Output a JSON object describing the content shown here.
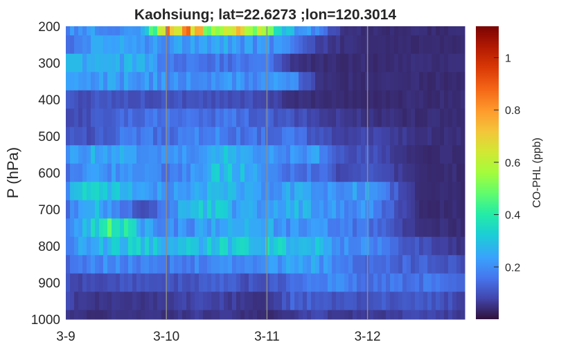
{
  "chart_data": {
    "type": "heatmap",
    "title": "Kaohsiung; lat=22.6273 ;lon=120.3014",
    "xlabel": "",
    "ylabel": "P (hPa)",
    "colorbar_label": "CO-PHL (ppb)",
    "colormap": "turbo",
    "clim": [
      0.0,
      1.12
    ],
    "x_range_days": [
      "3-9",
      "3-13"
    ],
    "x_ticks": [
      "3-9",
      "3-10",
      "3-11",
      "3-12"
    ],
    "y_range": [
      1000,
      200
    ],
    "y_reversed": true,
    "y_ticks": [
      200,
      300,
      400,
      500,
      600,
      700,
      800,
      900,
      1000
    ],
    "colorbar_ticks": [
      0.2,
      0.4,
      0.6,
      0.8,
      1
    ],
    "vertical_lines_at": [
      "3-10",
      "3-11",
      "3-12"
    ],
    "pressure_levels": [
      200,
      250,
      300,
      350,
      400,
      450,
      500,
      550,
      600,
      650,
      700,
      750,
      800,
      850,
      900,
      950,
      1000
    ],
    "time_nodes_day": [
      0,
      0.25,
      0.5,
      0.75,
      1.0,
      1.25,
      1.5,
      1.75,
      2.0,
      2.25,
      2.5,
      2.75,
      3.0,
      3.5,
      4.0
    ],
    "values": [
      [
        0.2,
        0.22,
        0.2,
        0.2,
        0.75,
        0.8,
        0.45,
        0.7,
        0.5,
        0.25,
        0.18,
        0.05,
        0.04,
        0.04,
        0.04
      ],
      [
        0.15,
        0.22,
        0.25,
        0.22,
        0.22,
        0.25,
        0.25,
        0.22,
        0.2,
        0.2,
        0.08,
        0.05,
        0.04,
        0.04,
        0.04
      ],
      [
        0.25,
        0.26,
        0.26,
        0.25,
        0.16,
        0.16,
        0.16,
        0.16,
        0.16,
        0.05,
        0.04,
        0.04,
        0.04,
        0.04,
        0.04
      ],
      [
        0.22,
        0.22,
        0.22,
        0.22,
        0.2,
        0.2,
        0.2,
        0.2,
        0.2,
        0.2,
        0.05,
        0.04,
        0.04,
        0.04,
        0.04
      ],
      [
        0.1,
        0.1,
        0.1,
        0.1,
        0.1,
        0.1,
        0.1,
        0.1,
        0.08,
        0.05,
        0.04,
        0.04,
        0.04,
        0.04,
        0.04
      ],
      [
        0.08,
        0.1,
        0.12,
        0.15,
        0.15,
        0.15,
        0.15,
        0.15,
        0.12,
        0.1,
        0.08,
        0.06,
        0.05,
        0.04,
        0.04
      ],
      [
        0.1,
        0.1,
        0.15,
        0.16,
        0.15,
        0.18,
        0.2,
        0.15,
        0.15,
        0.16,
        0.1,
        0.08,
        0.08,
        0.05,
        0.04
      ],
      [
        0.2,
        0.25,
        0.25,
        0.22,
        0.2,
        0.22,
        0.3,
        0.25,
        0.2,
        0.2,
        0.22,
        0.1,
        0.1,
        0.04,
        0.04
      ],
      [
        0.15,
        0.2,
        0.22,
        0.2,
        0.15,
        0.2,
        0.3,
        0.28,
        0.2,
        0.15,
        0.15,
        0.08,
        0.1,
        0.04,
        0.04
      ],
      [
        0.2,
        0.35,
        0.3,
        0.25,
        0.2,
        0.25,
        0.3,
        0.25,
        0.2,
        0.25,
        0.2,
        0.22,
        0.22,
        0.04,
        0.04
      ],
      [
        0.15,
        0.3,
        0.2,
        0.1,
        0.15,
        0.3,
        0.3,
        0.22,
        0.25,
        0.28,
        0.25,
        0.2,
        0.2,
        0.04,
        0.04
      ],
      [
        0.15,
        0.3,
        0.45,
        0.25,
        0.2,
        0.2,
        0.25,
        0.3,
        0.25,
        0.2,
        0.2,
        0.18,
        0.15,
        0.05,
        0.04
      ],
      [
        0.18,
        0.25,
        0.3,
        0.3,
        0.28,
        0.28,
        0.3,
        0.3,
        0.32,
        0.3,
        0.3,
        0.2,
        0.2,
        0.1,
        0.04
      ],
      [
        0.12,
        0.18,
        0.2,
        0.18,
        0.16,
        0.18,
        0.2,
        0.2,
        0.2,
        0.25,
        0.22,
        0.18,
        0.15,
        0.12,
        0.1
      ],
      [
        0.1,
        0.08,
        0.1,
        0.1,
        0.1,
        0.1,
        0.12,
        0.1,
        0.1,
        0.15,
        0.2,
        0.18,
        0.15,
        0.16,
        0.12
      ],
      [
        0.08,
        0.05,
        0.06,
        0.06,
        0.06,
        0.08,
        0.08,
        0.06,
        0.05,
        0.12,
        0.12,
        0.1,
        0.1,
        0.12,
        0.08
      ],
      [
        0.06,
        0.04,
        0.05,
        0.05,
        0.05,
        0.06,
        0.06,
        0.05,
        0.04,
        0.06,
        0.08,
        0.06,
        0.06,
        0.08,
        0.06
      ]
    ]
  }
}
